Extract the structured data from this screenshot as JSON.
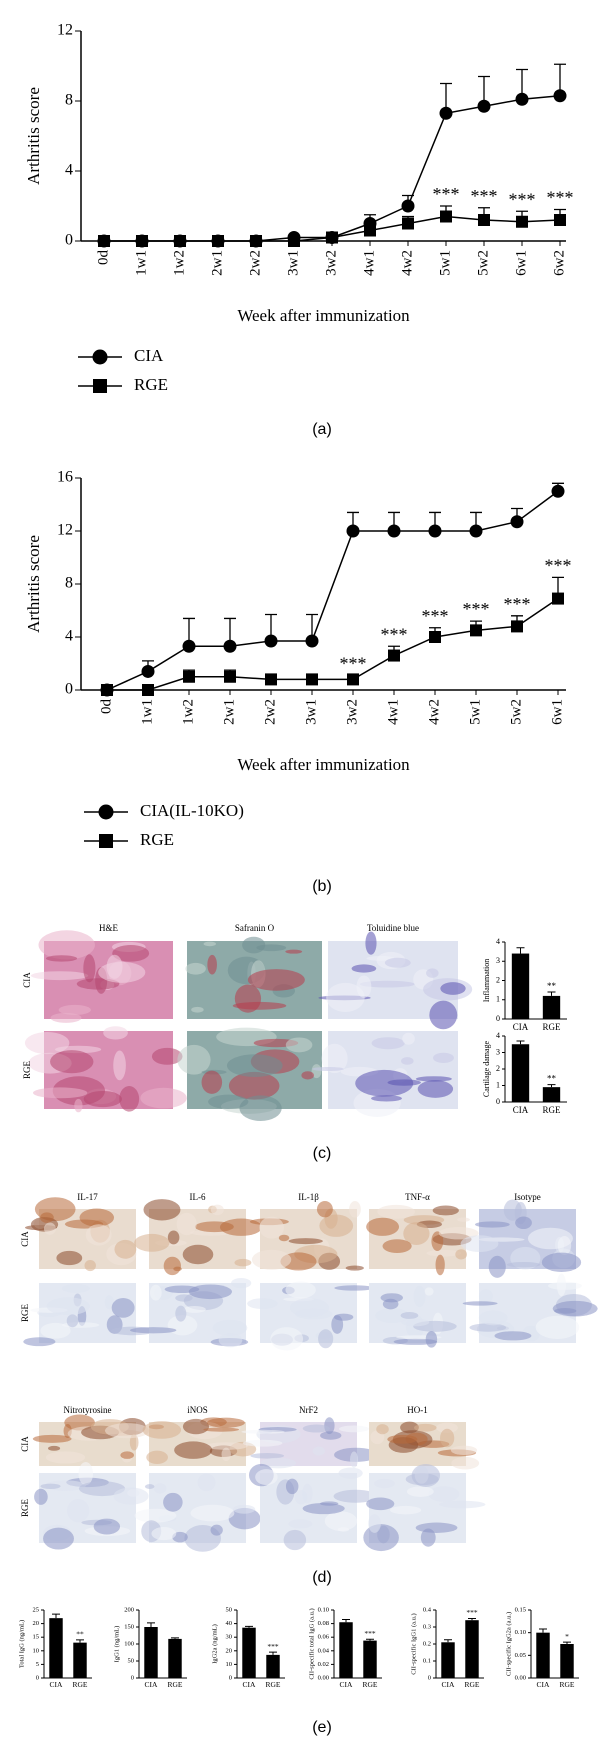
{
  "chart_data": [
    {
      "type": "line",
      "y_label": "Arthritis score",
      "x_label": "Week after immunization",
      "categories": [
        "0d",
        "1w1",
        "1w2",
        "2w1",
        "2w2",
        "3w1",
        "3w2",
        "4w1",
        "4w2",
        "5w1",
        "5w2",
        "6w1",
        "6w2"
      ],
      "ylim": [
        0,
        12
      ],
      "yticks": [
        0,
        4,
        8,
        12
      ],
      "series": [
        {
          "name": "CIA",
          "color": "#000000",
          "marker": "circle",
          "values": [
            0,
            0,
            0,
            0,
            0,
            0.2,
            0.2,
            1.0,
            2.0,
            7.3,
            7.7,
            8.1,
            8.3
          ],
          "errors": [
            0,
            0,
            0,
            0,
            0,
            0.1,
            0.1,
            0.5,
            0.6,
            1.7,
            1.7,
            1.7,
            1.8
          ]
        },
        {
          "name": "RGE",
          "color": "#000000",
          "marker": "square",
          "values": [
            0,
            0,
            0,
            0,
            0,
            0,
            0.2,
            0.6,
            1.0,
            1.4,
            1.2,
            1.1,
            1.2
          ],
          "errors": [
            0,
            0,
            0,
            0,
            0,
            0,
            0,
            0.3,
            0.4,
            0.6,
            0.7,
            0.6,
            0.6
          ],
          "significance": [
            null,
            null,
            null,
            null,
            null,
            null,
            null,
            null,
            null,
            "***",
            "***",
            "***",
            "***"
          ]
        }
      ]
    },
    {
      "type": "line",
      "y_label": "Arthritis score",
      "x_label": "Week after immunization",
      "categories": [
        "0d",
        "1w1",
        "1w2",
        "2w1",
        "2w2",
        "3w1",
        "3w2",
        "4w1",
        "4w2",
        "5w1",
        "5w2",
        "6w1"
      ],
      "ylim": [
        0,
        16
      ],
      "yticks": [
        0,
        4,
        8,
        12,
        16
      ],
      "series": [
        {
          "name": "CIA(IL-10KO)",
          "color": "#000000",
          "marker": "circle",
          "values": [
            0,
            1.4,
            3.3,
            3.3,
            3.7,
            3.7,
            12,
            12,
            12,
            12,
            12.7,
            15
          ],
          "errors": [
            0,
            0.8,
            2.1,
            2.1,
            2,
            2,
            1.4,
            1.4,
            1.4,
            1.4,
            1,
            0.6
          ]
        },
        {
          "name": "RGE",
          "color": "#000000",
          "marker": "square",
          "values": [
            0,
            0,
            1,
            1,
            0.8,
            0.8,
            0.8,
            2.6,
            4.0,
            4.5,
            4.8,
            6.9
          ],
          "errors": [
            0,
            0,
            0.5,
            0.5,
            0.3,
            0.3,
            0.3,
            0.7,
            0.7,
            0.7,
            0.8,
            1.6
          ],
          "significance": [
            null,
            null,
            null,
            null,
            null,
            null,
            "***",
            "***",
            "***",
            "***",
            "***",
            "***"
          ]
        }
      ]
    },
    {
      "type": "bar",
      "y_label": "Inflammation",
      "categories": [
        "CIA",
        "RGE"
      ],
      "values": [
        3.4,
        1.2
      ],
      "errors": [
        0.3,
        0.2
      ],
      "significance": [
        null,
        "**"
      ],
      "color": "#000000",
      "ylim": [
        0,
        4
      ],
      "yticks": [
        0,
        1,
        2,
        3,
        4
      ]
    },
    {
      "type": "bar",
      "y_label": "Cartilage damage",
      "categories": [
        "CIA",
        "RGE"
      ],
      "values": [
        3.5,
        0.9
      ],
      "errors": [
        0.2,
        0.15
      ],
      "significance": [
        null,
        "**"
      ],
      "color": "#000000",
      "ylim": [
        0,
        4
      ],
      "yticks": [
        0,
        1,
        2,
        3,
        4
      ]
    },
    {
      "type": "bar",
      "y_label": "Total IgG (ng/mL)",
      "categories": [
        "CIA",
        "RGE"
      ],
      "values": [
        22,
        13
      ],
      "errors": [
        1.5,
        1
      ],
      "significance": [
        null,
        "**"
      ],
      "color": "#000000",
      "ylim": [
        0,
        25
      ],
      "yticks": [
        0,
        5,
        10,
        15,
        20,
        25
      ]
    },
    {
      "type": "bar",
      "y_label": "IgG1 (ng/mL)",
      "categories": [
        "CIA",
        "RGE"
      ],
      "values": [
        150,
        115
      ],
      "errors": [
        12,
        3
      ],
      "significance": [
        null,
        null
      ],
      "color": "#000000",
      "ylim": [
        0,
        200
      ],
      "yticks": [
        0,
        50,
        100,
        150,
        200
      ]
    },
    {
      "type": "bar",
      "y_label": "IgG2a (ng/mL)",
      "categories": [
        "CIA",
        "RGE"
      ],
      "values": [
        37,
        17
      ],
      "errors": [
        1,
        2
      ],
      "significance": [
        null,
        "***"
      ],
      "color": "#000000",
      "ylim": [
        0,
        50
      ],
      "yticks": [
        0,
        10,
        20,
        30,
        40,
        50
      ]
    },
    {
      "type": "bar",
      "y_label": "CII-specific total IgG (a.u.)",
      "categories": [
        "CIA",
        "RGE"
      ],
      "values": [
        0.082,
        0.055
      ],
      "errors": [
        0.004,
        0.002
      ],
      "significance": [
        null,
        "***"
      ],
      "color": "#000000",
      "ylim": [
        0,
        0.1
      ],
      "yticks": [
        {
          "value": 0,
          "label": "0.00"
        },
        {
          "value": 0.02,
          "label": "0.02"
        },
        {
          "value": 0.04,
          "label": "0.04"
        },
        {
          "value": 0.06,
          "label": "0.06"
        },
        {
          "value": 0.08,
          "label": "0.08"
        },
        {
          "value": 0.1,
          "label": "0.10"
        }
      ]
    },
    {
      "type": "bar",
      "y_label": "CII-specific IgG1 (a.u.)",
      "categories": [
        "CIA",
        "RGE"
      ],
      "values": [
        0.21,
        0.34
      ],
      "errors": [
        0.015,
        0.01
      ],
      "significance": [
        null,
        "***"
      ],
      "color": "#000000",
      "ylim": [
        0,
        0.4
      ],
      "yticks": [
        0,
        0.1,
        0.2,
        0.3,
        0.4
      ]
    },
    {
      "type": "bar",
      "y_label": "CII-specific IgG2a (a.u.)",
      "categories": [
        "CIA",
        "RGE"
      ],
      "values": [
        0.1,
        0.075
      ],
      "errors": [
        0.008,
        0.004
      ],
      "significance": [
        null,
        "*"
      ],
      "color": "#000000",
      "ylim": [
        0,
        0.15
      ],
      "yticks": [
        {
          "value": 0,
          "label": "0.00"
        },
        {
          "value": 0.05,
          "label": "0.05"
        },
        {
          "value": 0.1,
          "label": "0.10"
        },
        {
          "value": 0.15,
          "label": "0.15"
        }
      ]
    }
  ],
  "panels": [
    "(a)",
    "(b)",
    "(c)",
    "(d)",
    "(e)"
  ],
  "histology": {
    "c": {
      "columns": [
        "H&E",
        "Safranin O",
        "Toluidine blue"
      ],
      "rows": [
        "CIA",
        "RGE"
      ]
    },
    "d": {
      "columns_top": [
        "IL-17",
        "IL-6",
        "IL-1β",
        "TNF-α",
        "Isotype"
      ],
      "columns_bottom": [
        "Nitrotyrosine",
        "iNOS",
        "NrF2",
        "HO-1"
      ],
      "rows": [
        "CIA",
        "RGE"
      ]
    }
  }
}
